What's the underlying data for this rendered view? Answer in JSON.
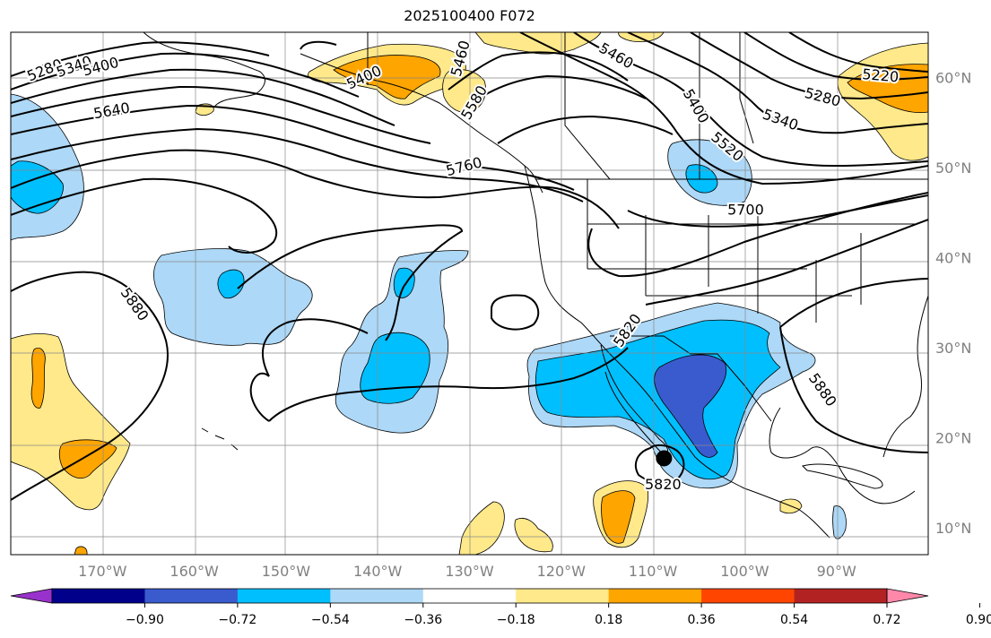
{
  "title": "2025100400 F072",
  "map": {
    "lon_min": -180,
    "lon_max": -80,
    "lat_min": 7,
    "lat_max": 65,
    "lon_ticks": [
      {
        "value": -170,
        "label": "170°W"
      },
      {
        "value": -160,
        "label": "160°W"
      },
      {
        "value": -150,
        "label": "150°W"
      },
      {
        "value": -140,
        "label": "140°W"
      },
      {
        "value": -130,
        "label": "130°W"
      },
      {
        "value": -120,
        "label": "120°W"
      },
      {
        "value": -110,
        "label": "110°W"
      },
      {
        "value": -100,
        "label": "100°W"
      },
      {
        "value": -90,
        "label": "90°W"
      }
    ],
    "lat_ticks": [
      {
        "value": 60,
        "label": "60°N"
      },
      {
        "value": 50,
        "label": "50°N"
      },
      {
        "value": 40,
        "label": "40°N"
      },
      {
        "value": 30,
        "label": "30°N"
      },
      {
        "value": 20,
        "label": "20°N"
      },
      {
        "value": 10,
        "label": "10°N"
      }
    ],
    "grid": true,
    "tick_label_color": "#808080"
  },
  "colorbar": {
    "colors": [
      "#9932cc",
      "#00008b",
      "#3a5bcd",
      "#00bfff",
      "#add8f7",
      "#ffffff",
      "#ffe98a",
      "#ffa500",
      "#ff4500",
      "#b22222",
      "#ff88aa"
    ],
    "boundaries": [
      -0.9,
      -0.72,
      -0.54,
      -0.36,
      -0.18,
      0.18,
      0.36,
      0.54,
      0.72,
      0.9
    ],
    "tick_labels": [
      "−0.90",
      "−0.72",
      "−0.54",
      "−0.36",
      "−0.18",
      "0.18",
      "0.36",
      "0.54",
      "0.72",
      "0.90"
    ]
  },
  "contour_labels": [
    {
      "text": "5280",
      "lon": -176.3,
      "lat": 60.8,
      "rot": -22
    },
    {
      "text": "5340",
      "lon": -173.1,
      "lat": 61.2,
      "rot": -20
    },
    {
      "text": "5400",
      "lon": -170.2,
      "lat": 61.2,
      "rot": -15
    },
    {
      "text": "5640",
      "lon": -169.0,
      "lat": 56.3,
      "rot": -10
    },
    {
      "text": "5880",
      "lon": -166.5,
      "lat": 34.8,
      "rot": 55
    },
    {
      "text": "5400",
      "lon": -141.5,
      "lat": 60.0,
      "rot": -25
    },
    {
      "text": "5460",
      "lon": -131.0,
      "lat": 62.1,
      "rot": -75
    },
    {
      "text": "5580",
      "lon": -129.5,
      "lat": 57.2,
      "rot": -60
    },
    {
      "text": "5760",
      "lon": -130.6,
      "lat": 50.1,
      "rot": -15
    },
    {
      "text": "5460",
      "lon": -114.0,
      "lat": 62.4,
      "rot": 30
    },
    {
      "text": "5400",
      "lon": -105.3,
      "lat": 56.8,
      "rot": 60
    },
    {
      "text": "5520",
      "lon": -101.9,
      "lat": 52.3,
      "rot": 40
    },
    {
      "text": "5340",
      "lon": -96.1,
      "lat": 55.3,
      "rot": 20
    },
    {
      "text": "5280",
      "lon": -91.5,
      "lat": 57.8,
      "rot": 15
    },
    {
      "text": "5220",
      "lon": -85.2,
      "lat": 60.2,
      "rot": 5
    },
    {
      "text": "5700",
      "lon": -99.9,
      "lat": 45.3,
      "rot": 0
    },
    {
      "text": "5820",
      "lon": -112.8,
      "lat": 31.9,
      "rot": -55
    },
    {
      "text": "5880",
      "lon": -91.5,
      "lat": 25.3,
      "rot": 55
    },
    {
      "text": "5820",
      "lon": -108.9,
      "lat": 14.8,
      "rot": 0
    }
  ],
  "storm_marker": {
    "lon": -108.8,
    "lat": 17.7
  }
}
